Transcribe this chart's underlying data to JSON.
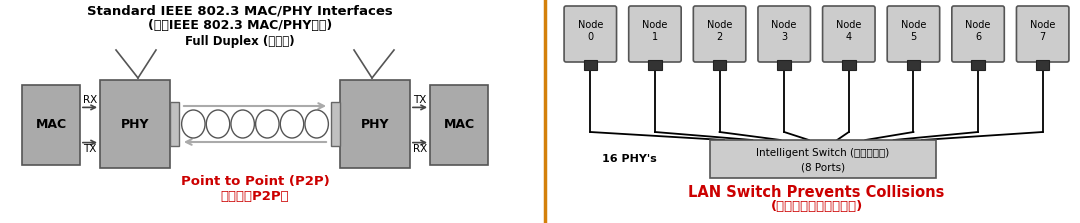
{
  "bg_color": "#ffffff",
  "left_title1": "Standard IEEE 802.3 MAC/PHY Interfaces",
  "left_title2": "(标准IEEE 802.3 MAC/PHY接口)",
  "left_subtitle": "Full Duplex (全双工)",
  "p2p_label1": "Point to Point (P2P)",
  "p2p_label2": "点对点（P2P）",
  "right_title1": "LAN Switch Prevents Collisions",
  "right_title2": "(局域网交换机预防冲突)",
  "switch_label1": "Intelligent Switch (智能交换机)",
  "switch_label2": "(8 Ports)",
  "phy_label": "16 PHY's",
  "nodes": [
    "Node\n0",
    "Node\n1",
    "Node\n2",
    "Node\n3",
    "Node\n4",
    "Node\n5",
    "Node\n6",
    "Node\n7"
  ],
  "red_color": "#cc0000",
  "gray_box": "#aaaaaa",
  "light_gray": "#cccccc",
  "divider_color": "#d4800a"
}
